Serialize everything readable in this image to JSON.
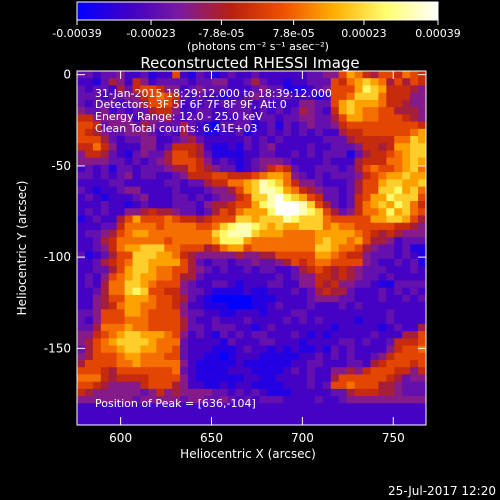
{
  "chart_data": {
    "type": "heatmap",
    "title": "Reconstructed RHESSI Image",
    "xlabel": "Heliocentric X (arcsec)",
    "ylabel": "Heliocentric Y (arcsec)",
    "xlim": [
      576,
      768
    ],
    "ylim": [
      -192,
      2
    ],
    "x_ticks": [
      600,
      650,
      700,
      750
    ],
    "y_ticks": [
      0,
      -50,
      -100,
      -150
    ],
    "colorbar": {
      "range": [
        -0.00039,
        0.00039
      ],
      "tick_values": [
        -0.00039,
        -0.00023,
        -7.8e-05,
        7.8e-05,
        0.00023,
        0.00039
      ],
      "tick_labels": [
        "-0.00039",
        "-0.00023",
        "-7.8e-05",
        "7.8e-05",
        "0.00023",
        "0.00039"
      ],
      "units_label": "(photons cm⁻² s⁻¹ asec⁻²)",
      "colors": [
        "#0000ff",
        "#3f00c8",
        "#7a1a9e",
        "#b8200f",
        "#f05000",
        "#ffb000",
        "#ffff70",
        "#ffffff"
      ]
    },
    "annotations": [
      "31-Jan-2015 18:29:12.000 to 18:39:12.000",
      "Detectors: 3F 5F 6F 7F 8F 9F, Att 0",
      "Energy Range: 12.0 - 25.0 keV",
      "Clean     Total counts: 6.41E+03"
    ],
    "peak_label": "Position of Peak = [636,-104]",
    "peak": [
      636,
      -104
    ],
    "timestamp": "25-Jul-2017 12:20",
    "grid": false,
    "pixel_size_arcsec": 4,
    "intensity_map": [
      "ddcddeccdbcchcbdcbcdccdccccccddeehjigfhhgihg",
      "ccbdfecgecddddcddeeccdfdccbccdddhgijkjifhfhg",
      "dcddcfdghhgeecdedddcccdeddbbbcdehhhjlkjgggfe",
      "dddcddeeghihgdcdccbccdeddddcccbchhikkkigggee",
      "dcdddcdefhhhfcccdcddddcdcccceeddhjkjjjiggfee",
      "eddecdcddfggeccddccdddcdcdcdfedcgjkjiihhfffe",
      "ggeeeeeceeefdcdddcccddcddcddeeddfhjjiihhhgfe",
      "hhgdeeedfedddfdcbaddddbcdbdcdeddeghhhhhhhhhg",
      "hgfeddeeedcdcfdcbbccdbccdcdcdcdccfgghhhhhhij",
      "hhhfdcddeeccdefdcccccdcdcdcccccdddfgggggiikj",
      "ggigeccceecdgggfcbbcbdcdeccccdccdddeggfgjjkk",
      "eggfdcbdeddfhhgfdbbbbccddccdcdcdddbdfgghijkk",
      "eeeeddcdcdefhhhgecdcbcdeeedccccdcccfgggiijkj",
      "cdcdbddcdddeffhgfeddbcdeghgdccdddcdfhihhijki",
      "ddcdcdecddccdeggghhggghijjiedcdcdddeghijjkjj",
      "ccccddcccccddcddfggiijkmlkigeedcccdfhhjkkjjk",
      "dcbccdeeccccdcccdeefhjkmmljigfeddcdfhhkkljki",
      "cdcbcccdecccddcdcdeeghkkmnlkjhgddcdghjjlkkkh",
      "cccdccbcdcccdddceffghhjlmnnnmkhfdcdgijkjlkig",
      "cdcdcceefgffeddcdfhgijjjlnnnmlkhfdegiijljkih",
      "bcdccfhjhhhihggfghhhkkjkkkmlkkkihhhhhjjkkjhf",
      "cccddgiiiihiiiihhiklmmlkjkjjkkkijiihhhhhggfe",
      "cddefhijjiiiiiiiiklmmmkjjjiiiijjjjjihgfgfeee",
      "ccdfgiiiiiihiiiiijllljiiiiiiiijkjjijhffecddd",
      "ccdegijjkkkiihhhfgijjhiiiiiiiikkjiihfeddcdbb",
      "dbcdfhhkkkjjigfeeeeefeeffhhhhhjjihggedddcdcb",
      "ccdfghikkjjjjhfdcddcddeddefhghiihhhhedccdcdb",
      "ccddfhjkkjiihhfedcdccdcddccdfghgfgfedddcccdc",
      "cdcehijkjjiihffdcccccccccdcdeeggfgfeddcdcccc",
      "cdcfiikkjihhhedccddcbcccddcceegfgeeddcbbdddd",
      "ccdfiiklkhhggeddcbbbbcbbcccdcdfgffdcccdcdcdc",
      "ccefhhjjjihhgfdcbaaaaabbbccccdeeeddcccdccdcd",
      "ccefgijjiihhgeccbbbaaabbcdcccdcccdcdcccccccc",
      "ddehhhjjihhhheddccbbcccbcccddccccccccccdcccc",
      "dcehhhiiihhhhfdccdcccdccccdcdcdccccbcccdcccc",
      "ddfiiijiihhhhfddcdddccbcdcccccccbcccccbcdccf",
      "eeghijkkjjjihecdcbdcdcddcccdcbcbcccccdcccffh",
      "efhijkkkkjiiidccccbdcccddcccbccccddcdccdgggh",
      "dfhiijkkjjiihdcccbbbcdccbcbcbbcbdcdcccceghhi",
      "efhhhijjiiihhdccbbabcccbbbbbccdcdcdccdeghhhh",
      "fhhhhiijiiiiiecbbbbbcbbbbbbccddcccddcfghhhgh",
      "hhhgfhhhhhhhidcbbbbcccbbbbcdcdcceefeghhhggeg",
      "iiigfgggghhhhecbbbbbbccbbccccdccfhhhhhhgfdee",
      "hhgfeeeeghhhfeccbbcbccbbbbcccdcdhhihhhffeddd",
      "gfeeeeeedegefeeeeddcdcdcbbbcccccddfgggffeddd",
      "eeeeeeedeeeeedeeddedcdcdddccccdccdeeeeeeeeee",
      "cccccccccccccccccccccccccccccccccccccccccccc",
      "cccccccccccccccccccccccccccccccccccccccccccc",
      "cccccccccccccccccccccccccccccccccccccccccccc"
    ]
  }
}
